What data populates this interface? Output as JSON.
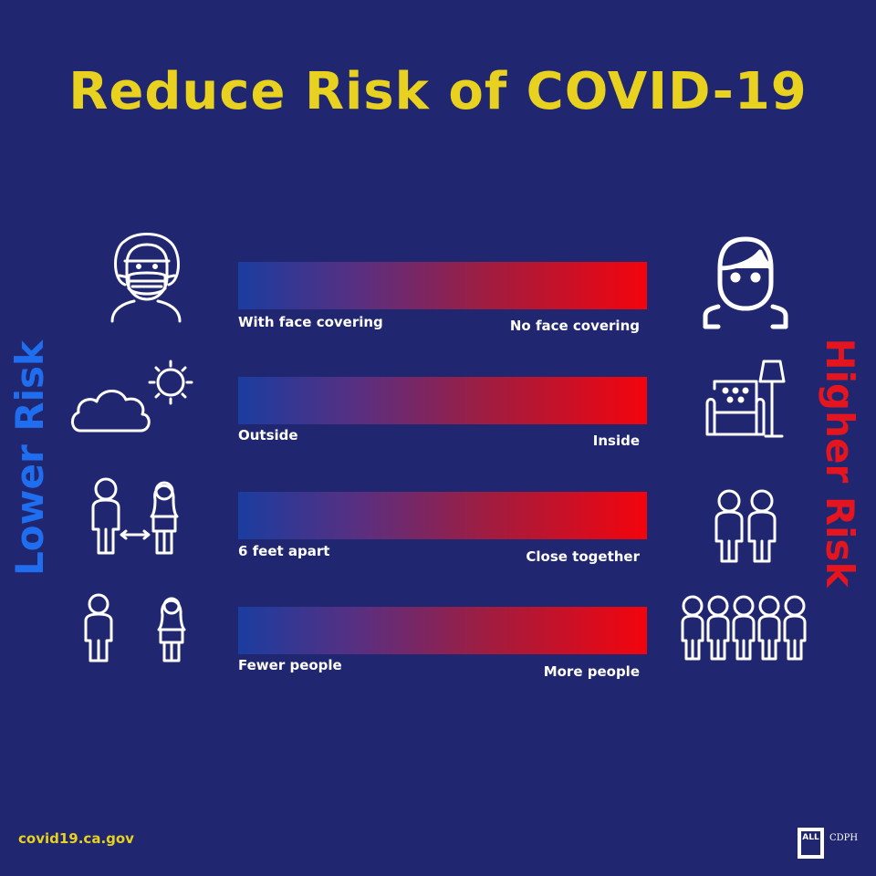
{
  "title": "Reduce Risk of COVID-19",
  "side_labels": {
    "lower": "Lower Risk",
    "higher": "Higher Risk"
  },
  "rows": [
    {
      "left": "With face covering",
      "right": "No face covering",
      "left_icon": "masked-person-icon",
      "right_icon": "unmasked-person-icon"
    },
    {
      "left": "Outside",
      "right": "Inside",
      "left_icon": "cloud-sun-icon",
      "right_icon": "armchair-lamp-icon"
    },
    {
      "left": "6 feet apart",
      "right": "Close together",
      "left_icon": "two-people-apart-icon",
      "right_icon": "two-people-together-icon"
    },
    {
      "left": "Fewer people",
      "right": "More people",
      "left_icon": "two-people-icon",
      "right_icon": "crowd-icon"
    }
  ],
  "footer": {
    "url": "covid19.ca.gov",
    "logo_all": "ALL",
    "logo_cdph": "CDPH"
  },
  "colors": {
    "background": "#202770",
    "title": "#e8d11f",
    "lower_risk": "#1f6ef0",
    "higher_risk": "#e4151f",
    "bar_start": "#1a3da0",
    "bar_end": "#f4040c"
  }
}
